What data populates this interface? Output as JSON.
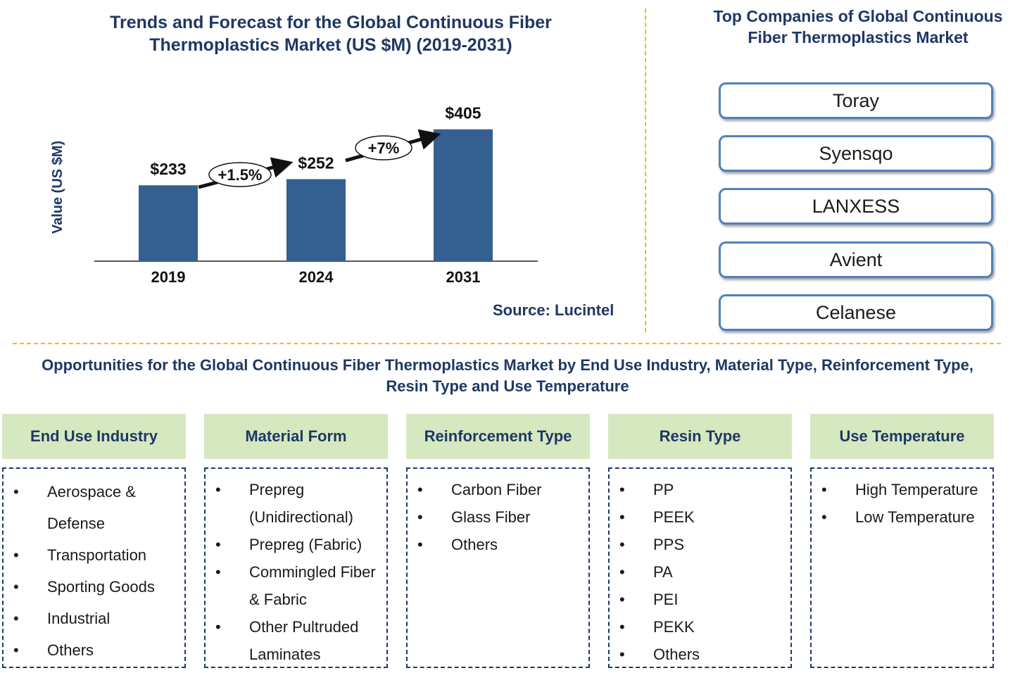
{
  "chart_data": {
    "type": "bar",
    "title": "Trends and Forecast for the Global Continuous Fiber Thermoplastics Market (US $M) (2019-2031)",
    "ylabel": "Value (US $M)",
    "xlabel": "",
    "categories": [
      "2019",
      "2024",
      "2031"
    ],
    "values": [
      233,
      252,
      405
    ],
    "value_labels": [
      "$233",
      "$252",
      "$405"
    ],
    "ylim": [
      0,
      500
    ],
    "bar_color": "#355f91",
    "growth_annotations": [
      {
        "from": "2019",
        "to": "2024",
        "label": "+1.5%"
      },
      {
        "from": "2024",
        "to": "2031",
        "label": "+7%"
      }
    ],
    "source": "Source: Lucintel",
    "grid": false
  },
  "companies": {
    "title": "Top Companies of Global Continuous Fiber Thermoplastics Market",
    "items": [
      "Toray",
      "Syensqo",
      "LANXESS",
      "Avient",
      "Celanese"
    ]
  },
  "opportunities": {
    "title": "Opportunities for the Global Continuous Fiber Thermoplastics Market by End Use Industry, Material Type, Reinforcement Type, Resin Type and Use Temperature",
    "segments": [
      {
        "title": "End Use Industry",
        "items": [
          "Aerospace & Defense",
          "Transportation",
          "Sporting Goods",
          "Industrial",
          "Others"
        ]
      },
      {
        "title": "Material Form",
        "items": [
          "Prepreg (Unidirectional)",
          "Prepreg (Fabric)",
          "Commingled Fiber & Fabric",
          "Other Pultruded Laminates"
        ]
      },
      {
        "title": "Reinforcement Type",
        "items": [
          "Carbon Fiber",
          "Glass Fiber",
          "Others"
        ]
      },
      {
        "title": "Resin Type",
        "items": [
          "PP",
          "PEEK",
          "PPS",
          "PA",
          "PEI",
          "PEKK",
          "Others"
        ]
      },
      {
        "title": "Use Temperature",
        "items": [
          "High Temperature",
          "Low Temperature"
        ]
      }
    ]
  },
  "colors": {
    "navy": "#1f3864",
    "segment_header_bg": "#d6e8c0",
    "divider": "#f5b800",
    "company_border": "#4f81bd"
  }
}
